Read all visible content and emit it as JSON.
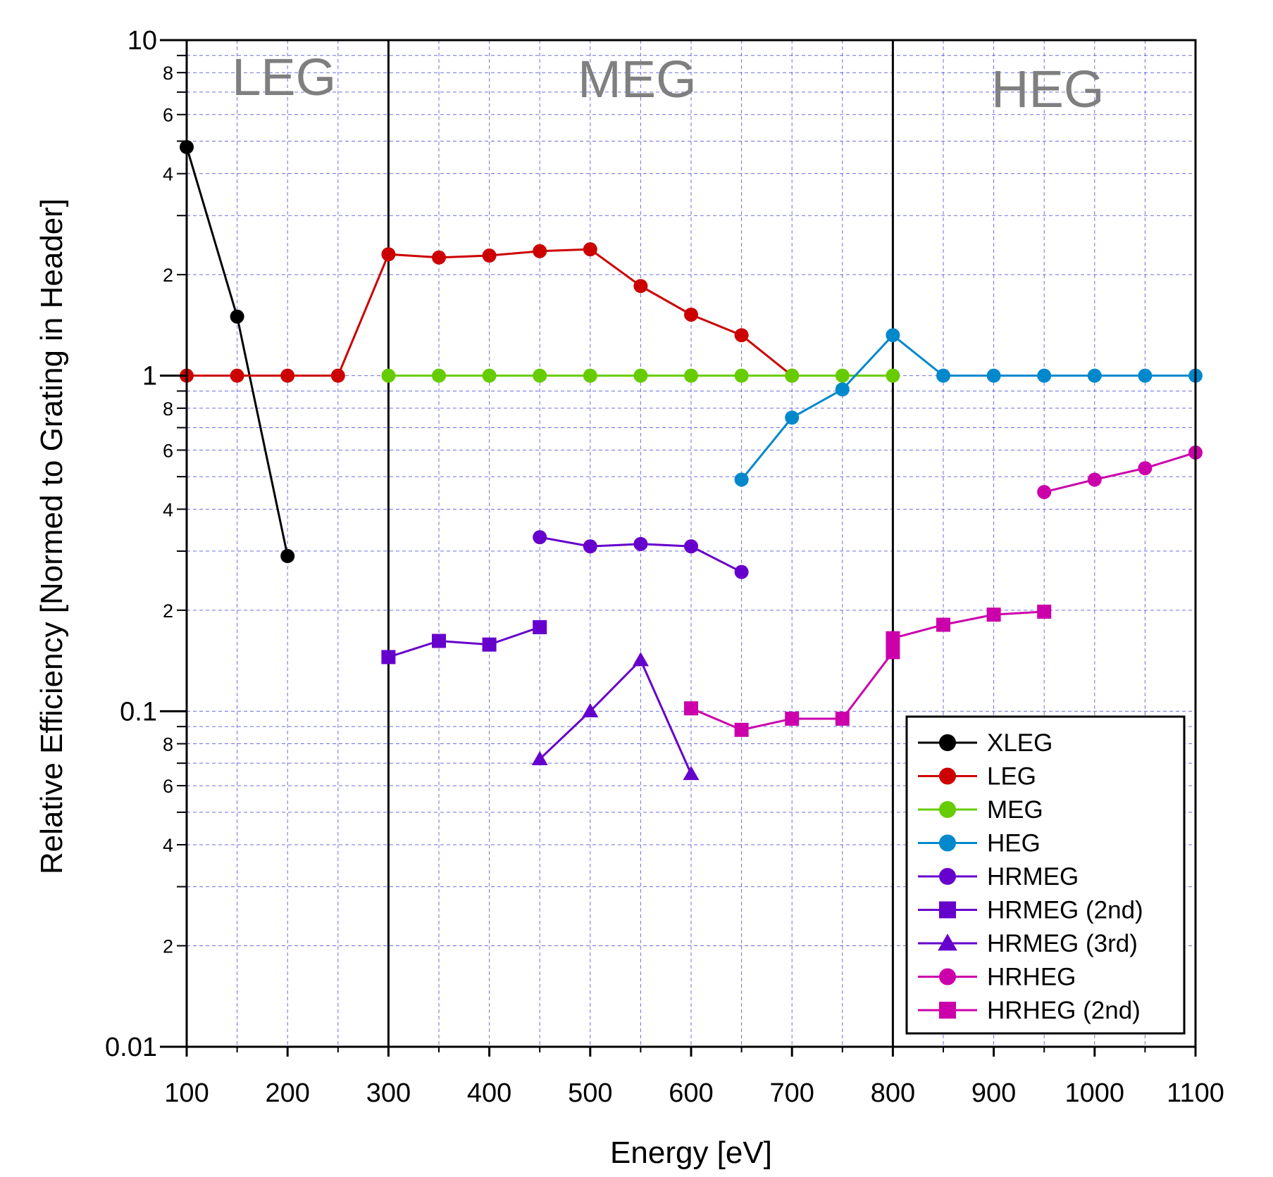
{
  "chart_data": {
    "type": "line",
    "title": "",
    "xlabel": "Energy [eV]",
    "ylabel": "Relative Efficiency [Normed to Grating in Header]",
    "xlim": [
      100,
      1100
    ],
    "ylim": [
      0.01,
      10
    ],
    "y_scale": "log",
    "grid": true,
    "legend_position": "bottom-right",
    "x_ticks": [
      "100",
      "200",
      "300",
      "400",
      "500",
      "600",
      "700",
      "800",
      "900",
      "1000",
      "1100"
    ],
    "y_major_ticks": [
      "0.01",
      "0.1",
      "1",
      "10"
    ],
    "y_minor_labels": [
      "2",
      "4",
      "6",
      "8"
    ],
    "regions": [
      {
        "label": "LEG",
        "from": 100,
        "to": 300
      },
      {
        "label": "MEG",
        "from": 300,
        "to": 800
      },
      {
        "label": "HEG",
        "from": 800,
        "to": 1100
      }
    ],
    "series": [
      {
        "name": "XLEG",
        "color": "#000000",
        "marker": "circle",
        "x": [
          100,
          150,
          200
        ],
        "y": [
          4.8,
          1.5,
          0.29
        ]
      },
      {
        "name": "LEG",
        "color": "#cc0000",
        "marker": "circle",
        "x": [
          100,
          150,
          200,
          250,
          300,
          350,
          400,
          450,
          500,
          550,
          600,
          650,
          700
        ],
        "y": [
          1,
          1,
          1,
          1,
          2.3,
          2.25,
          2.28,
          2.35,
          2.38,
          1.85,
          1.52,
          1.32,
          1
        ]
      },
      {
        "name": "MEG",
        "color": "#66cc00",
        "marker": "circle",
        "x": [
          300,
          350,
          400,
          450,
          500,
          550,
          600,
          650,
          700,
          750,
          800
        ],
        "y": [
          1,
          1,
          1,
          1,
          1,
          1,
          1,
          1,
          1,
          1,
          1
        ]
      },
      {
        "name": "HEG",
        "color": "#0088cc",
        "marker": "circle",
        "x": [
          650,
          700,
          750,
          800,
          850,
          900,
          950,
          1000,
          1050,
          1100
        ],
        "y": [
          0.49,
          0.75,
          0.91,
          1.32,
          1,
          1,
          1,
          1,
          1,
          1
        ]
      },
      {
        "name": "HRMEG",
        "color": "#6600cc",
        "marker": "circle",
        "x": [
          450,
          500,
          550,
          600,
          650
        ],
        "y": [
          0.33,
          0.31,
          0.315,
          0.31,
          0.26
        ]
      },
      {
        "name": "HRMEG (2nd)",
        "color": "#6600cc",
        "marker": "square",
        "x": [
          300,
          350,
          400,
          450
        ],
        "y": [
          0.145,
          0.162,
          0.158,
          0.178
        ]
      },
      {
        "name": "HRMEG (3rd)",
        "color": "#6600cc",
        "marker": "triangle",
        "x": [
          450,
          500,
          550,
          600
        ],
        "y": [
          0.072,
          0.1,
          0.142,
          0.065
        ]
      },
      {
        "name": "HRHEG",
        "color": "#cc00aa",
        "marker": "circle",
        "x": [
          950,
          1000,
          1050,
          1100
        ],
        "y": [
          0.45,
          0.49,
          0.53,
          0.59
        ]
      },
      {
        "name": "HRHEG (2nd)",
        "color": "#cc00aa",
        "marker": "square",
        "x": [
          600,
          650,
          700,
          750,
          800,
          800,
          850,
          900,
          950
        ],
        "y": [
          0.102,
          0.088,
          0.095,
          0.095,
          0.15,
          0.165,
          0.181,
          0.194,
          0.198
        ]
      }
    ]
  }
}
